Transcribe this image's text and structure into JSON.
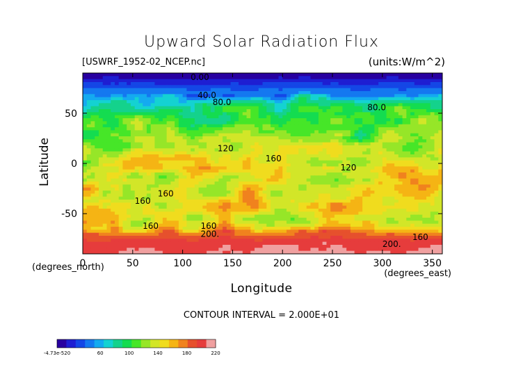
{
  "chart_data": {
    "type": "heatmap",
    "title": "Upward Solar Radiation Flux",
    "file_label": "[USWRF_1952-02_NCEP.nc]",
    "units_label": "(units:W/m^2)",
    "xlabel": "Longitude",
    "ylabel": "Latitude",
    "x_unit_label": "(degrees_east)",
    "y_unit_label": "(degrees_north)",
    "xlim": [
      0,
      360
    ],
    "ylim": [
      -90,
      90
    ],
    "x_ticks": [
      0,
      50,
      100,
      150,
      200,
      250,
      300,
      350
    ],
    "y_ticks": [
      50,
      0,
      -50
    ],
    "contour_interval_text": "CONTOUR INTERVAL = 2.000E+01",
    "contour_labels": [
      {
        "text": "0.00",
        "lon": 108,
        "lat": 83
      },
      {
        "text": "40.0",
        "lon": 115,
        "lat": 65
      },
      {
        "text": "80.0",
        "lon": 130,
        "lat": 58
      },
      {
        "text": "80.0",
        "lon": 285,
        "lat": 53
      },
      {
        "text": "120",
        "lon": 135,
        "lat": 12
      },
      {
        "text": "160",
        "lon": 183,
        "lat": 2
      },
      {
        "text": "120",
        "lon": 258,
        "lat": -7
      },
      {
        "text": "160",
        "lon": 52,
        "lat": -40
      },
      {
        "text": "160",
        "lon": 75,
        "lat": -33
      },
      {
        "text": "160",
        "lon": 60,
        "lat": -65
      },
      {
        "text": "160",
        "lon": 118,
        "lat": -65
      },
      {
        "text": "200.",
        "lon": 118,
        "lat": -73
      },
      {
        "text": "200.",
        "lon": 300,
        "lat": -83
      },
      {
        "text": "160",
        "lon": 330,
        "lat": -76
      }
    ],
    "zonal_band_values": [
      {
        "lat": 90,
        "value": 0
      },
      {
        "lat": 85,
        "value": 10
      },
      {
        "lat": 78,
        "value": 30
      },
      {
        "lat": 70,
        "value": 50
      },
      {
        "lat": 63,
        "value": 75
      },
      {
        "lat": 55,
        "value": 95
      },
      {
        "lat": 45,
        "value": 105
      },
      {
        "lat": 35,
        "value": 112
      },
      {
        "lat": 25,
        "value": 118
      },
      {
        "lat": 15,
        "value": 120
      },
      {
        "lat": 5,
        "value": 140
      },
      {
        "lat": -5,
        "value": 150
      },
      {
        "lat": -15,
        "value": 140
      },
      {
        "lat": -25,
        "value": 150
      },
      {
        "lat": -35,
        "value": 145
      },
      {
        "lat": -45,
        "value": 150
      },
      {
        "lat": -55,
        "value": 140
      },
      {
        "lat": -63,
        "value": 150
      },
      {
        "lat": -70,
        "value": 180
      },
      {
        "lat": -78,
        "value": 202
      },
      {
        "lat": -90,
        "value": 210
      }
    ],
    "colorbar": {
      "tick_labels": [
        "-4.73e-520",
        "60",
        "100",
        "140",
        "180",
        "220"
      ],
      "tick_values": [
        0,
        60,
        100,
        140,
        180,
        220
      ],
      "range": [
        0,
        220
      ],
      "colors": [
        "#2800a0",
        "#1e1ed2",
        "#1446e6",
        "#1478f0",
        "#14aaf0",
        "#14d2d2",
        "#14d28c",
        "#14dc50",
        "#46e628",
        "#96e628",
        "#d2e628",
        "#f0dc1e",
        "#f5b414",
        "#f0821e",
        "#e6502d",
        "#e63c3c",
        "#f0a0a0"
      ]
    }
  }
}
